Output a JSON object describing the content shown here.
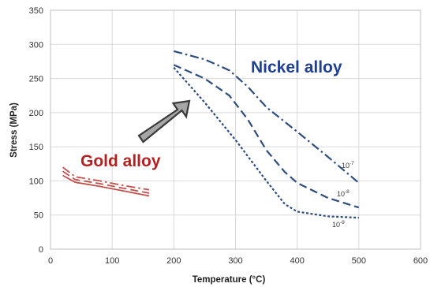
{
  "chart_data": {
    "type": "line",
    "xlabel": "Temperature (°C)",
    "ylabel": "Stress (MPa)",
    "xlim": [
      0,
      600
    ],
    "ylim": [
      0,
      350
    ],
    "xticks": [
      0,
      100,
      200,
      300,
      400,
      500,
      600
    ],
    "yticks": [
      0,
      50,
      100,
      150,
      200,
      250,
      300,
      350
    ],
    "grid": true,
    "annotations": [
      {
        "text": "Nickel alloy",
        "color": "#1f3f8f"
      },
      {
        "text": "Gold alloy",
        "color": "#b22222"
      }
    ],
    "series": [
      {
        "group": "Nickel alloy",
        "name": "10-7",
        "label_base": "10",
        "label_exp": "-7",
        "color": "#2c4d7e",
        "style": "dashdot",
        "x": [
          200,
          250,
          290,
          320,
          350,
          400,
          450,
          500
        ],
        "y": [
          290,
          278,
          262,
          238,
          208,
          172,
          135,
          97
        ]
      },
      {
        "group": "Nickel alloy",
        "name": "10-8",
        "label_base": "10",
        "label_exp": "-8",
        "color": "#2c4d7e",
        "style": "longdash",
        "x": [
          200,
          250,
          290,
          320,
          350,
          380,
          400,
          450,
          500
        ],
        "y": [
          270,
          250,
          225,
          190,
          145,
          113,
          97,
          75,
          61
        ]
      },
      {
        "group": "Nickel alloy",
        "name": "10-9",
        "label_base": "10",
        "label_exp": "-9",
        "color": "#2c4d7e",
        "style": "dotted",
        "x": [
          200,
          250,
          300,
          350,
          380,
          400,
          450,
          500
        ],
        "y": [
          266,
          215,
          160,
          100,
          66,
          55,
          48,
          46
        ]
      },
      {
        "group": "Gold alloy",
        "color": "#c0504d",
        "style": "dashdot",
        "x": [
          20,
          40,
          80,
          120,
          160
        ],
        "y": [
          120,
          106,
          100,
          93,
          87
        ]
      },
      {
        "group": "Gold alloy",
        "color": "#c0504d",
        "style": "longdash",
        "x": [
          20,
          40,
          80,
          120,
          160
        ],
        "y": [
          114,
          102,
          96,
          89,
          82
        ]
      },
      {
        "group": "Gold alloy",
        "color": "#c0504d",
        "style": "solid",
        "x": [
          20,
          40,
          80,
          120,
          160
        ],
        "y": [
          108,
          98,
          92,
          85,
          78
        ]
      }
    ]
  }
}
